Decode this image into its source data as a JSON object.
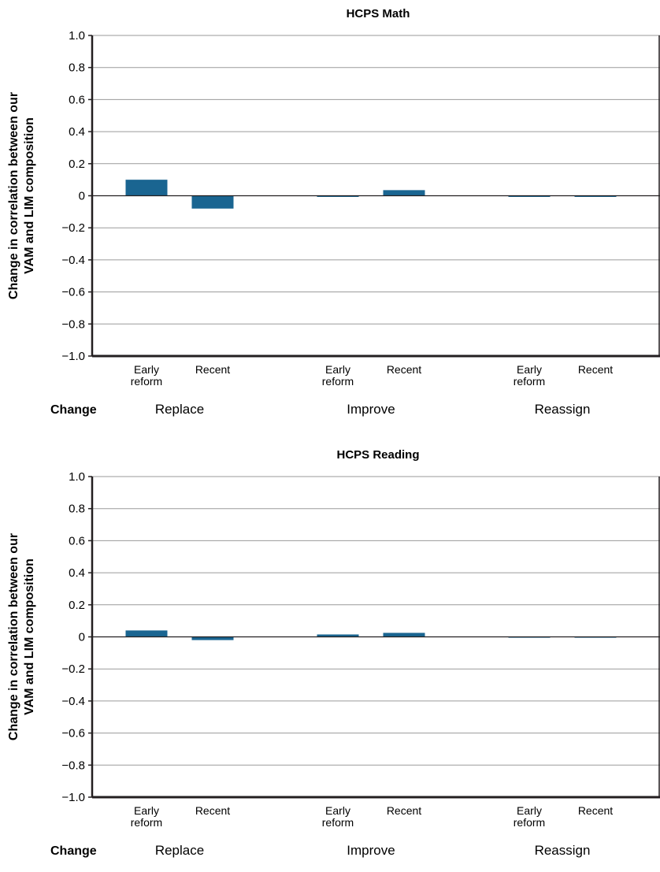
{
  "chart_data": [
    {
      "type": "bar",
      "title": "HCPS Math",
      "ylabel_lines": [
        "Change in correlation between our",
        "VAM and LIM composition"
      ],
      "ylim": [
        -1.0,
        1.0
      ],
      "yticks": [
        "1.0",
        "0.8",
        "0.6",
        "0.4",
        "0.2",
        "0",
        "−0.2",
        "−0.4",
        "−0.6",
        "−0.8",
        "−1.0"
      ],
      "ytick_values": [
        1.0,
        0.8,
        0.6,
        0.4,
        0.2,
        0,
        -0.2,
        -0.4,
        -0.6,
        -0.8,
        -1.0
      ],
      "x_header": "Change",
      "groups": [
        "Replace",
        "Improve",
        "Reassign"
      ],
      "categories": [
        [
          "Early",
          "reform"
        ],
        [
          "Recent"
        ]
      ],
      "values": [
        [
          0.1,
          -0.08
        ],
        [
          0.0,
          0.035
        ],
        [
          -0.005,
          -0.005
        ]
      ],
      "grid": true,
      "bar_color": "#1a6591"
    },
    {
      "type": "bar",
      "title": "HCPS Reading",
      "ylabel_lines": [
        "Change in correlation between our",
        "VAM and LIM composition"
      ],
      "ylim": [
        -1.0,
        1.0
      ],
      "yticks": [
        "1.0",
        "0.8",
        "0.6",
        "0.4",
        "0.2",
        "0",
        "−0.2",
        "−0.4",
        "−0.6",
        "−0.8",
        "−1.0"
      ],
      "ytick_values": [
        1.0,
        0.8,
        0.6,
        0.4,
        0.2,
        0,
        -0.2,
        -0.4,
        -0.6,
        -0.8,
        -1.0
      ],
      "x_header": "Change",
      "groups": [
        "Replace",
        "Improve",
        "Reassign"
      ],
      "categories": [
        [
          "Early",
          "reform"
        ],
        [
          "Recent"
        ]
      ],
      "values": [
        [
          0.04,
          -0.02
        ],
        [
          0.015,
          0.025
        ],
        [
          0.002,
          0.002
        ]
      ],
      "grid": true,
      "bar_color": "#1a6591"
    }
  ]
}
